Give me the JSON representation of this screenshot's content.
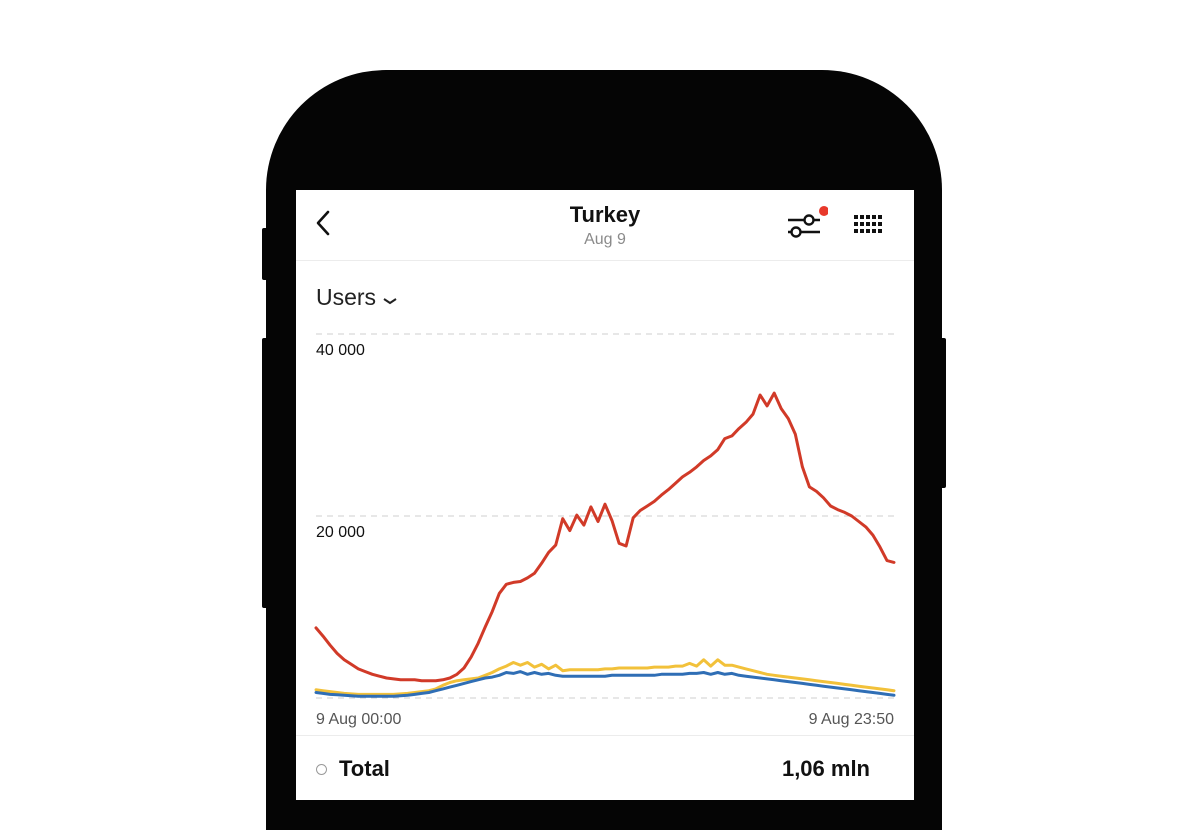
{
  "header": {
    "title": "Turkey",
    "subtitle": "Aug 9",
    "back_icon": "chevron-left-icon",
    "filter_icon": "filter-sliders-icon",
    "filter_badge_color": "#e8392b",
    "apps_icon": "grid-icon"
  },
  "metric_selector": {
    "label": "Users",
    "icon": "chevron-down-icon"
  },
  "chart_data": {
    "type": "line",
    "x_start_label": "9 Aug 00:00",
    "x_end_label": "9 Aug 23:50",
    "y_tick_labels": [
      "40 000",
      "20 000"
    ],
    "y_ticks": [
      40000,
      20000
    ],
    "ylim": [
      0,
      40000
    ],
    "grid": true,
    "series": [
      {
        "color": "#d13a28",
        "values": [
          7700,
          6800,
          5800,
          4900,
          4200,
          3700,
          3200,
          2900,
          2600,
          2400,
          2200,
          2100,
          2000,
          2000,
          2000,
          1900,
          1900,
          1900,
          2000,
          2200,
          2600,
          3300,
          4500,
          6000,
          7800,
          9500,
          11500,
          12500,
          12700,
          12800,
          13200,
          13700,
          14800,
          16000,
          16800,
          19700,
          18400,
          20100,
          19000,
          21000,
          19400,
          21300,
          19500,
          17000,
          16700,
          19800,
          20600,
          21100,
          21600,
          22300,
          22900,
          23600,
          24300,
          24800,
          25400,
          26100,
          26600,
          27300,
          28500,
          28800,
          29600,
          30300,
          31200,
          33300,
          32100,
          33500,
          31800,
          30700,
          29000,
          25400,
          23200,
          22700,
          22000,
          21100,
          20700,
          20400,
          20000,
          19400,
          18800,
          17900,
          16600,
          15100,
          14900
        ]
      },
      {
        "color": "#f2c13a",
        "values": [
          900,
          800,
          700,
          600,
          500,
          450,
          400,
          400,
          400,
          400,
          400,
          400,
          450,
          500,
          600,
          700,
          800,
          1000,
          1400,
          1700,
          1900,
          2000,
          2100,
          2200,
          2500,
          2800,
          3200,
          3500,
          3900,
          3600,
          3900,
          3400,
          3700,
          3200,
          3600,
          3000,
          3100,
          3100,
          3100,
          3100,
          3100,
          3200,
          3200,
          3300,
          3300,
          3300,
          3300,
          3300,
          3400,
          3400,
          3400,
          3500,
          3500,
          3800,
          3500,
          4200,
          3500,
          4200,
          3600,
          3600,
          3400,
          3200,
          3000,
          2800,
          2600,
          2500,
          2400,
          2300,
          2200,
          2100,
          2000,
          1900,
          1800,
          1700,
          1600,
          1500,
          1400,
          1300,
          1200,
          1100,
          1000,
          900,
          800
        ]
      },
      {
        "color": "#2f6eb5",
        "values": [
          600,
          500,
          400,
          350,
          300,
          250,
          200,
          200,
          200,
          200,
          200,
          200,
          250,
          300,
          400,
          500,
          600,
          800,
          1000,
          1200,
          1400,
          1600,
          1800,
          2000,
          2200,
          2300,
          2500,
          2800,
          2700,
          2900,
          2600,
          2800,
          2600,
          2700,
          2500,
          2400,
          2400,
          2400,
          2400,
          2400,
          2400,
          2400,
          2500,
          2500,
          2500,
          2500,
          2500,
          2500,
          2500,
          2600,
          2600,
          2600,
          2600,
          2700,
          2700,
          2800,
          2600,
          2800,
          2600,
          2700,
          2500,
          2400,
          2300,
          2200,
          2100,
          2000,
          1900,
          1800,
          1700,
          1600,
          1500,
          1400,
          1300,
          1200,
          1100,
          1000,
          900,
          800,
          700,
          600,
          500,
          400,
          300
        ]
      }
    ]
  },
  "total": {
    "label": "Total",
    "value": "1,06 mln"
  }
}
